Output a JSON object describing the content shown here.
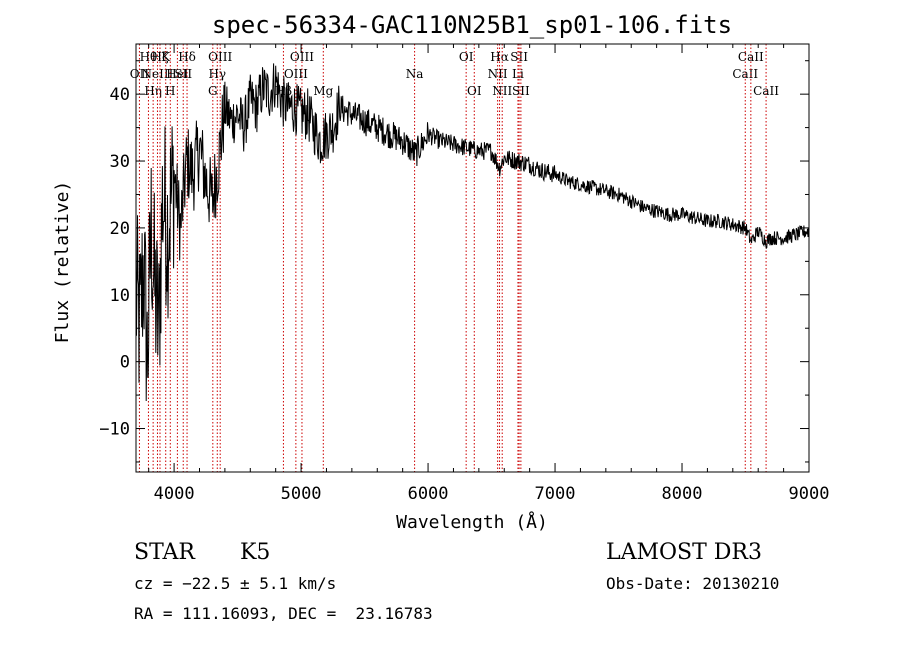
{
  "chart_data": {
    "type": "line",
    "title": "spec-56334-GAC110N25B1_sp01-106.fits",
    "xlabel": "Wavelength (Å)",
    "ylabel": "Flux (relative)",
    "xlim": [
      3700,
      9000
    ],
    "ylim": [
      -16.5,
      47.5
    ],
    "xticks": [
      4000,
      5000,
      6000,
      7000,
      8000,
      9000
    ],
    "yticks": [
      -10,
      0,
      10,
      20,
      30,
      40
    ],
    "series": [
      {
        "name": "spectrum",
        "x": [
          3700,
          3730,
          3760,
          3790,
          3820,
          3850,
          3880,
          3910,
          3950,
          4000,
          4050,
          4100,
          4150,
          4200,
          4250,
          4300,
          4350,
          4400,
          4450,
          4500,
          4550,
          4600,
          4650,
          4700,
          4750,
          4800,
          4850,
          4900,
          4950,
          5000,
          5050,
          5100,
          5150,
          5200,
          5250,
          5300,
          5400,
          5500,
          5600,
          5700,
          5800,
          5900,
          6000,
          6100,
          6200,
          6300,
          6400,
          6500,
          6563,
          6600,
          6700,
          6800,
          6900,
          7000,
          7100,
          7200,
          7300,
          7400,
          7500,
          7600,
          7700,
          7800,
          7900,
          8000,
          8100,
          8200,
          8300,
          8400,
          8500,
          8542,
          8600,
          8662,
          8700,
          8800,
          8900,
          8980
        ],
        "y": [
          10,
          5,
          15,
          0,
          20,
          10,
          5,
          25,
          20,
          28,
          20,
          30,
          28,
          32,
          27,
          24,
          30,
          38,
          36,
          37,
          35,
          39,
          38,
          41,
          40,
          42,
          39,
          38,
          38,
          37,
          37,
          35,
          33,
          34,
          35,
          38,
          37,
          36,
          35,
          34,
          33,
          31,
          34,
          33,
          32.5,
          32,
          31.5,
          31.5,
          29,
          30.5,
          30,
          29.5,
          28.5,
          28,
          27,
          26.5,
          26,
          25.5,
          25,
          24,
          23,
          22.5,
          22,
          22,
          21.5,
          21,
          21,
          20.5,
          20,
          18,
          19.5,
          18,
          18.5,
          18.5,
          19,
          19.5
        ]
      }
    ],
    "lines": [
      {
        "w": 3727,
        "label": "OII",
        "row": 2
      },
      {
        "w": 3798,
        "label": "Hθ",
        "row": 1
      },
      {
        "w": 3835,
        "label": "Hη",
        "row": 3
      },
      {
        "w": 3869,
        "label": "NeIII",
        "row": 2
      },
      {
        "w": 3889,
        "label": "Hζ",
        "row": 1
      },
      {
        "w": 3934,
        "label": "K",
        "row": 1
      },
      {
        "w": 3970,
        "label": "H",
        "row": 3
      },
      {
        "w": 4026,
        "label": "HeI",
        "row": 2
      },
      {
        "w": 4072,
        "label": "SII",
        "row": 2
      },
      {
        "w": 4102,
        "label": "Hδ",
        "row": 1
      },
      {
        "w": 4305,
        "label": "G",
        "row": 3
      },
      {
        "w": 4340,
        "label": "Hγ",
        "row": 2
      },
      {
        "w": 4363,
        "label": "OIII",
        "row": 1
      },
      {
        "w": 4861,
        "label": "Hβ",
        "row": 3
      },
      {
        "w": 4959,
        "label": "OIII",
        "row": 2
      },
      {
        "w": 5007,
        "label": "OIII",
        "row": 1
      },
      {
        "w": 5175,
        "label": "Mg",
        "row": 3
      },
      {
        "w": 5894,
        "label": "Na",
        "row": 2
      },
      {
        "w": 6300,
        "label": "OI",
        "row": 1
      },
      {
        "w": 6364,
        "label": "OI",
        "row": 3
      },
      {
        "w": 6548,
        "label": "NII",
        "row": 2
      },
      {
        "w": 6563,
        "label": "Hα",
        "row": 1
      },
      {
        "w": 6584,
        "label": "NII",
        "row": 3
      },
      {
        "w": 6708,
        "label": "Li",
        "row": 2
      },
      {
        "w": 6717,
        "label": "SII",
        "row": 1
      },
      {
        "w": 6731,
        "label": "SII",
        "row": 3
      },
      {
        "w": 8498,
        "label": "CaII",
        "row": 2
      },
      {
        "w": 8542,
        "label": "CaII",
        "row": 1
      },
      {
        "w": 8662,
        "label": "CaII",
        "row": 3
      }
    ]
  },
  "info": {
    "class": "STAR",
    "subclass": "K5",
    "survey": "LAMOST DR3",
    "cz": "cz = −22.5 ± 5.1 km/s",
    "obs_date": "Obs-Date: 20130210",
    "coords": "RA = 111.16093, DEC =  23.16783"
  },
  "colors": {
    "line_marker": "#cc0000",
    "spectrum": "#000000",
    "axis": "#000000"
  }
}
